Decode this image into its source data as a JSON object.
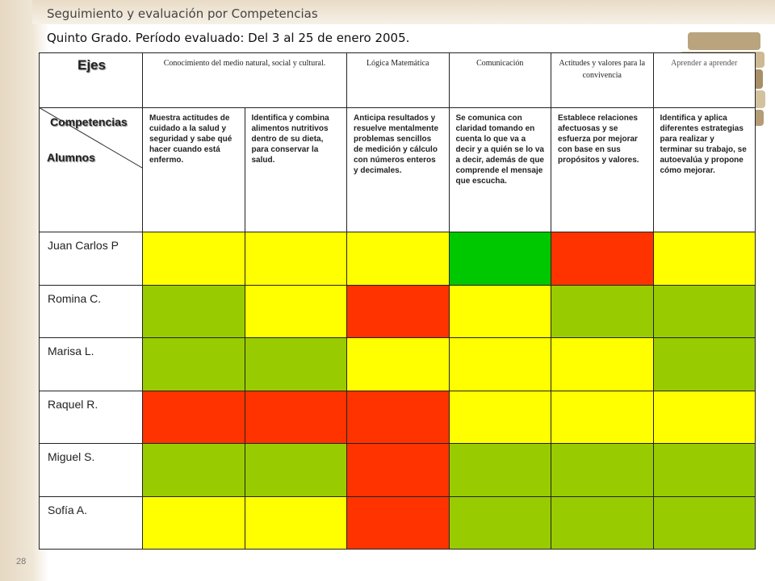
{
  "header": {
    "title": "Seguimiento y evaluación por Competencias",
    "subtitle": "Quinto Grado.  Período evaluado: Del 3 al 25 de enero 2005."
  },
  "table": {
    "axes_label": "Ejes",
    "competencies_label": "Competencias",
    "students_label": "Alumnos",
    "columns": [
      {
        "axis": "Conocimiento del medio natural, social y cultural.",
        "competency": "Muestra actitudes de cuidado a la salud y seguridad y sabe qué hacer cuando está enfermo."
      },
      {
        "axis": "",
        "competency": "Identifica y combina alimentos nutritivos dentro de su dieta, para conservar la salud."
      },
      {
        "axis": "Lógica Matemática",
        "competency": "Anticipa resultados y resuelve mentalmente problemas sencillos de medición y cálculo con números enteros y decimales."
      },
      {
        "axis": "Comunicación",
        "competency": "Se comunica con claridad tomando en cuenta lo que va a decir y a quién se lo va a decir, además de que comprende el mensaje que escucha."
      },
      {
        "axis": "Actitudes y valores para la convivencia",
        "competency": "Establece relaciones afectuosas y se esfuerza por mejorar con base en sus propósitos y valores."
      },
      {
        "axis": "Aprender a aprender",
        "competency": "Identifica y aplica diferentes estrategias para realizar y terminar su trabajo, se autoevalúa y propone cómo mejorar."
      }
    ],
    "rows": [
      {
        "name": "Juan Carlos P",
        "cells": [
          "#ffff00",
          "#ffff00",
          "#ffff00",
          "#00c800",
          "#ff3300",
          "#ffff00"
        ]
      },
      {
        "name": "Romina C.",
        "cells": [
          "#99cc00",
          "#ffff00",
          "#ff3300",
          "#ffff00",
          "#99cc00",
          "#99cc00"
        ]
      },
      {
        "name": "Marisa L.",
        "cells": [
          "#99cc00",
          "#99cc00",
          "#ffff00",
          "#ffff00",
          "#ffff00",
          "#99cc00"
        ]
      },
      {
        "name": "Raquel R.",
        "cells": [
          "#ff3300",
          "#ff3300",
          "#ff3300",
          "#ffff00",
          "#ffff00",
          "#ffff00"
        ]
      },
      {
        "name": "Miguel S.",
        "cells": [
          "#99cc00",
          "#99cc00",
          "#ff3300",
          "#99cc00",
          "#99cc00",
          "#99cc00"
        ]
      },
      {
        "name": "Sofía A.",
        "cells": [
          "#ffff00",
          "#ffff00",
          "#ff3300",
          "#99cc00",
          "#99cc00",
          "#99cc00"
        ]
      }
    ]
  },
  "page_number": "28"
}
